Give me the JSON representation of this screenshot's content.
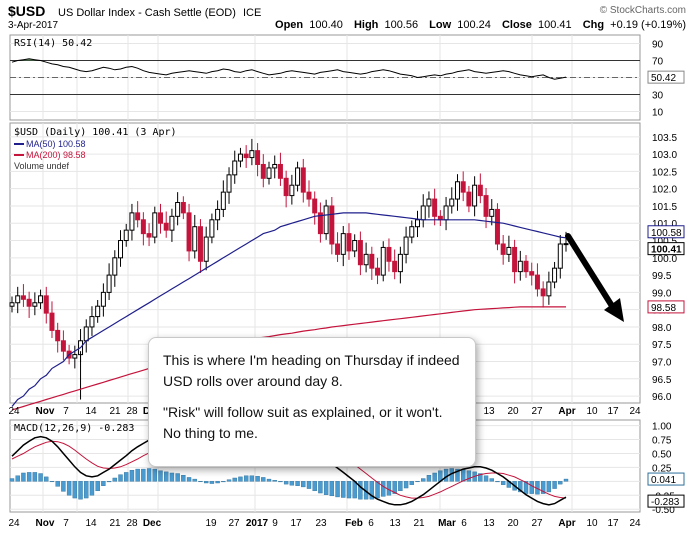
{
  "header": {
    "symbol": "$USD",
    "description": "US Dollar Index - Cash Settle (EOD)",
    "exchange": "ICE",
    "watermark": "© StockCharts.com",
    "date": "3-Apr-2017",
    "open_label": "Open",
    "open": "100.40",
    "high_label": "High",
    "high": "100.56",
    "low_label": "Low",
    "low": "100.24",
    "close_label": "Close",
    "close": "100.41",
    "chg_label": "Chg",
    "chg": "+0.19 (+0.19%)"
  },
  "callout": {
    "line1": "This is where I'm heading on Thursday if indeed USD rolls over around day 8.",
    "line2": "\"Risk\" will follow suit as explained, or it won't. No thing to me."
  },
  "chart_data": [
    {
      "type": "line",
      "panel": "rsi",
      "legend": "RSI(14) 50.42",
      "y_ticks": [
        "90",
        "70",
        "50",
        "30",
        "10"
      ],
      "ylim": [
        0,
        100
      ],
      "levels": [
        70,
        50,
        30
      ],
      "last_value_label": "50.42",
      "colors": {
        "line": "#000000",
        "overbought_fill": "#4d8a4d"
      },
      "values": [
        68,
        70,
        71,
        72,
        71,
        70,
        68,
        66,
        65,
        63,
        62,
        60,
        58,
        57,
        58,
        60,
        62,
        61,
        59,
        60,
        62,
        63,
        61,
        58,
        56,
        55,
        54,
        53,
        55,
        56,
        57,
        58,
        57,
        56,
        55,
        57,
        58,
        60,
        59,
        57,
        56,
        58,
        59,
        57,
        55,
        53,
        54,
        55,
        57,
        58,
        57,
        56,
        55,
        54,
        56,
        57,
        58,
        59,
        57,
        56,
        55,
        54,
        55,
        57,
        58,
        59,
        58,
        56,
        54,
        53,
        52,
        50,
        51,
        52,
        53,
        52,
        54,
        55,
        57,
        58,
        59,
        57,
        56,
        55,
        56,
        57,
        58,
        57,
        55,
        53,
        52,
        51,
        52,
        53,
        50,
        48,
        49,
        50.42
      ]
    },
    {
      "type": "candlestick",
      "panel": "price",
      "legend": [
        "$USD (Daily) 100.41 (3 Apr)",
        "MA(50) 100.58",
        "MA(200) 98.58",
        "Volume undef"
      ],
      "y_ticks": [
        "103.5",
        "103.0",
        "102.5",
        "102.0",
        "101.5",
        "101.0",
        "100.5",
        "100.0",
        "99.5",
        "99.0",
        "98.5",
        "98.0",
        "97.5",
        "97.0",
        "96.5",
        "96.0"
      ],
      "ylim": [
        95.8,
        103.9
      ],
      "x_labels": [
        "24",
        "Nov",
        "7",
        "14",
        "21",
        "28",
        "Dec",
        "19",
        "27",
        "2017",
        "9",
        "17",
        "23",
        "Feb",
        "6",
        "13",
        "21",
        "Mar",
        "6",
        "13",
        "20",
        "27",
        "Apr",
        "10",
        "17",
        "24"
      ],
      "last_value_labels": [
        "100.58",
        "100.41",
        "98.58"
      ],
      "colors": {
        "up": "#000000",
        "down": "#c4143c",
        "ma50": "#1f1f8c",
        "ma200": "#c4143c"
      },
      "closes": [
        98.7,
        98.9,
        98.8,
        98.6,
        98.7,
        98.9,
        98.4,
        97.9,
        97.6,
        97.3,
        97.1,
        97.2,
        97.6,
        98.0,
        98.3,
        98.6,
        99.0,
        99.5,
        100.0,
        100.5,
        100.8,
        101.3,
        101.1,
        100.7,
        100.6,
        101.3,
        101.0,
        100.8,
        101.2,
        101.6,
        101.3,
        100.2,
        100.9,
        99.9,
        100.6,
        101.1,
        101.4,
        101.9,
        102.4,
        102.8,
        103.0,
        102.9,
        103.1,
        102.7,
        102.3,
        102.6,
        102.7,
        102.3,
        101.8,
        102.1,
        102.6,
        101.9,
        101.7,
        101.3,
        100.7,
        101.5,
        100.4,
        100.1,
        100.7,
        100.2,
        100.5,
        99.8,
        100.1,
        99.7,
        99.5,
        100.3,
        99.9,
        99.6,
        100.1,
        100.6,
        100.9,
        101.1,
        101.5,
        101.7,
        101.2,
        101.1,
        101.5,
        101.7,
        102.2,
        101.9,
        101.5,
        102.1,
        101.8,
        101.2,
        101.4,
        100.4,
        100.1,
        100.3,
        99.6,
        99.9,
        99.6,
        99.5,
        99.1,
        98.9,
        99.3,
        99.7,
        100.4,
        100.41
      ],
      "ma50": [
        95.7,
        95.9,
        96.0,
        96.2,
        96.3,
        96.5,
        96.6,
        96.8,
        96.9,
        97.0,
        97.2,
        97.3,
        97.4,
        97.6,
        97.7,
        97.8,
        97.9,
        98.0,
        98.1,
        98.2,
        98.3,
        98.4,
        98.5,
        98.6,
        98.7,
        98.8,
        98.9,
        99.0,
        99.1,
        99.2,
        99.3,
        99.4,
        99.5,
        99.6,
        99.7,
        99.8,
        99.9,
        100.0,
        100.1,
        100.2,
        100.3,
        100.4,
        100.5,
        100.6,
        100.7,
        100.75,
        100.8,
        100.9,
        100.95,
        101.0,
        101.05,
        101.1,
        101.15,
        101.2,
        101.22,
        101.24,
        101.26,
        101.28,
        101.3,
        101.3,
        101.3,
        101.3,
        101.3,
        101.28,
        101.26,
        101.24,
        101.22,
        101.2,
        101.18,
        101.16,
        101.14,
        101.12,
        101.1,
        101.1,
        101.1,
        101.1,
        101.1,
        101.1,
        101.1,
        101.1,
        101.1,
        101.1,
        101.08,
        101.06,
        101.04,
        101.02,
        101.0,
        100.96,
        100.92,
        100.88,
        100.84,
        100.8,
        100.76,
        100.72,
        100.68,
        100.64,
        100.6,
        100.58
      ],
      "ma200": [
        95.6,
        95.65,
        95.7,
        95.75,
        95.8,
        95.85,
        95.9,
        95.95,
        96.0,
        96.05,
        96.1,
        96.15,
        96.2,
        96.25,
        96.3,
        96.35,
        96.4,
        96.45,
        96.5,
        96.55,
        96.6,
        96.65,
        96.7,
        96.75,
        96.8,
        96.85,
        96.9,
        96.95,
        97.0,
        97.05,
        97.1,
        97.15,
        97.2,
        97.25,
        97.3,
        97.35,
        97.4,
        97.45,
        97.5,
        97.55,
        97.6,
        97.62,
        97.65,
        97.68,
        97.7,
        97.72,
        97.75,
        97.78,
        97.8,
        97.82,
        97.85,
        97.88,
        97.9,
        97.92,
        97.95,
        97.97,
        98.0,
        98.02,
        98.04,
        98.06,
        98.08,
        98.1,
        98.12,
        98.14,
        98.16,
        98.18,
        98.2,
        98.22,
        98.24,
        98.26,
        98.28,
        98.3,
        98.32,
        98.34,
        98.36,
        98.38,
        98.4,
        98.42,
        98.44,
        98.46,
        98.48,
        98.5,
        98.51,
        98.52,
        98.53,
        98.54,
        98.55,
        98.56,
        98.57,
        98.58,
        98.58,
        98.58,
        98.58,
        98.58,
        98.58,
        98.58,
        98.58,
        98.58
      ]
    },
    {
      "type": "line",
      "panel": "macd",
      "legend": "MACD(12,26,9) -0.283",
      "y_ticks": [
        "1.00",
        "0.75",
        "0.50",
        "0.25",
        "0.00",
        "-0.25",
        "-0.50"
      ],
      "ylim": [
        -0.55,
        1.1
      ],
      "last_value_labels": [
        "0.041",
        "-0.283"
      ],
      "colors": {
        "macd": "#000000",
        "signal": "#c4143c",
        "histogram": "#4a9bd0"
      },
      "macd": [
        0.45,
        0.55,
        0.65,
        0.72,
        0.78,
        0.8,
        0.78,
        0.72,
        0.62,
        0.5,
        0.38,
        0.26,
        0.16,
        0.1,
        0.08,
        0.1,
        0.16,
        0.22,
        0.3,
        0.38,
        0.46,
        0.55,
        0.62,
        0.68,
        0.74,
        0.78,
        0.8,
        0.82,
        0.84,
        0.86,
        0.86,
        0.84,
        0.82,
        0.78,
        0.74,
        0.72,
        0.72,
        0.74,
        0.78,
        0.82,
        0.86,
        0.9,
        0.92,
        0.93,
        0.92,
        0.9,
        0.88,
        0.85,
        0.8,
        0.76,
        0.74,
        0.7,
        0.64,
        0.56,
        0.48,
        0.4,
        0.32,
        0.24,
        0.16,
        0.08,
        0.0,
        -0.1,
        -0.18,
        -0.26,
        -0.32,
        -0.36,
        -0.4,
        -0.42,
        -0.42,
        -0.4,
        -0.36,
        -0.3,
        -0.24,
        -0.16,
        -0.08,
        0.0,
        0.08,
        0.14,
        0.18,
        0.22,
        0.24,
        0.26,
        0.26,
        0.24,
        0.2,
        0.14,
        0.08,
        0.0,
        -0.08,
        -0.16,
        -0.24,
        -0.3,
        -0.36,
        -0.4,
        -0.42,
        -0.4,
        -0.34,
        -0.283
      ],
      "signal": [
        0.4,
        0.45,
        0.5,
        0.56,
        0.62,
        0.66,
        0.7,
        0.72,
        0.71,
        0.68,
        0.63,
        0.56,
        0.48,
        0.4,
        0.33,
        0.27,
        0.24,
        0.23,
        0.24,
        0.26,
        0.3,
        0.35,
        0.4,
        0.46,
        0.51,
        0.56,
        0.61,
        0.65,
        0.69,
        0.72,
        0.75,
        0.77,
        0.78,
        0.78,
        0.77,
        0.76,
        0.75,
        0.75,
        0.75,
        0.76,
        0.78,
        0.8,
        0.82,
        0.84,
        0.85,
        0.86,
        0.86,
        0.86,
        0.85,
        0.83,
        0.82,
        0.8,
        0.77,
        0.73,
        0.69,
        0.64,
        0.58,
        0.52,
        0.45,
        0.38,
        0.3,
        0.22,
        0.14,
        0.06,
        -0.02,
        -0.09,
        -0.15,
        -0.2,
        -0.25,
        -0.28,
        -0.3,
        -0.3,
        -0.29,
        -0.27,
        -0.23,
        -0.19,
        -0.14,
        -0.09,
        -0.04,
        0.01,
        0.05,
        0.09,
        0.12,
        0.14,
        0.15,
        0.15,
        0.14,
        0.11,
        0.08,
        0.03,
        -0.02,
        -0.08,
        -0.13,
        -0.18,
        -0.23,
        -0.27,
        -0.29,
        -0.3
      ],
      "histogram": [
        0.05,
        0.1,
        0.15,
        0.16,
        0.16,
        0.14,
        0.08,
        0.0,
        -0.09,
        -0.18,
        -0.25,
        -0.3,
        -0.32,
        -0.3,
        -0.25,
        -0.17,
        -0.08,
        -0.01,
        0.06,
        0.12,
        0.16,
        0.2,
        0.22,
        0.22,
        0.23,
        0.22,
        0.19,
        0.17,
        0.15,
        0.14,
        0.11,
        0.07,
        0.04,
        0.0,
        -0.03,
        -0.04,
        -0.03,
        -0.01,
        0.03,
        0.06,
        0.08,
        0.1,
        0.1,
        0.09,
        0.07,
        0.04,
        0.02,
        -0.01,
        -0.05,
        -0.07,
        -0.08,
        -0.1,
        -0.13,
        -0.17,
        -0.21,
        -0.24,
        -0.26,
        -0.28,
        -0.29,
        -0.3,
        -0.3,
        -0.32,
        -0.32,
        -0.32,
        -0.3,
        -0.27,
        -0.25,
        -0.22,
        -0.17,
        -0.12,
        -0.06,
        0.0,
        0.05,
        0.11,
        0.15,
        0.19,
        0.22,
        0.23,
        0.22,
        0.21,
        0.19,
        0.17,
        0.14,
        0.1,
        0.05,
        -0.01,
        -0.06,
        -0.11,
        -0.16,
        -0.19,
        -0.22,
        -0.22,
        -0.23,
        -0.22,
        -0.19,
        -0.13,
        -0.05,
        0.041
      ]
    }
  ]
}
